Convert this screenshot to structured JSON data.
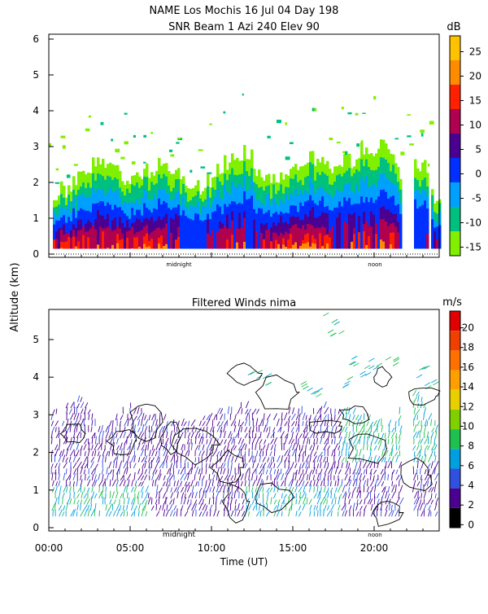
{
  "header": {
    "title": "NAME Los Mochis    16 Jul 04 Day 198",
    "subtitle": "SNR Beam 1 Azi 240 Elev 90"
  },
  "shared": {
    "ylabel": "Altitude (km)",
    "xlabel": "Time (UT)",
    "x_ticks": [
      "00:00",
      "05:00",
      "10:00",
      "15:00",
      "20:00"
    ],
    "marker_midnight": "midnight",
    "marker_noon": "noon"
  },
  "chart_data": [
    {
      "type": "heatmap",
      "title": "SNR Beam 1 Azi 240 Elev 90",
      "colorbar_unit": "dB",
      "colorbar_ticks": [
        "25",
        "20",
        "15",
        "10",
        "5",
        "0",
        "-5",
        "-10",
        "-15"
      ],
      "colorbar_colors": [
        "#ffc200",
        "#ff8c00",
        "#ff2000",
        "#b00050",
        "#4a0090",
        "#0030ff",
        "#00a0ff",
        "#00c080",
        "#80f000"
      ],
      "ylim": [
        0,
        6
      ],
      "y_ticks": [
        "0",
        "1",
        "2",
        "3",
        "4",
        "5",
        "6"
      ],
      "xlim": [
        0,
        24
      ],
      "echo_top_km": [
        [
          0.0,
          1.6
        ],
        [
          1.0,
          1.8
        ],
        [
          2.0,
          2.2
        ],
        [
          3.0,
          2.6
        ],
        [
          4.0,
          2.4
        ],
        [
          5.0,
          2.0
        ],
        [
          6.0,
          2.3
        ],
        [
          7.0,
          2.5
        ],
        [
          8.0,
          2.2
        ],
        [
          9.0,
          1.9
        ],
        [
          10.0,
          2.1
        ],
        [
          11.0,
          2.6
        ],
        [
          12.0,
          2.9
        ],
        [
          13.0,
          2.2
        ],
        [
          14.0,
          2.1
        ],
        [
          15.0,
          2.4
        ],
        [
          16.0,
          2.7
        ],
        [
          17.0,
          2.5
        ],
        [
          18.0,
          2.6
        ],
        [
          19.0,
          2.8
        ],
        [
          20.0,
          2.9
        ],
        [
          20.5,
          3.2
        ],
        [
          21.0,
          2.9
        ],
        [
          21.6,
          2.2
        ],
        [
          22.3,
          2.5
        ],
        [
          23.2,
          2.3
        ],
        [
          23.6,
          1.6
        ]
      ]
    },
    {
      "type": "heatmap",
      "title": "Filtered Winds nima",
      "colorbar_unit": "m/s",
      "colorbar_ticks": [
        "20",
        "18",
        "16",
        "14",
        "12",
        "10",
        "8",
        "6",
        "4",
        "2",
        "0"
      ],
      "colorbar_colors": [
        "#e00000",
        "#f04000",
        "#ff7000",
        "#ffa000",
        "#e8d000",
        "#80d000",
        "#20c050",
        "#00a0e0",
        "#3050e0",
        "#4a0090",
        "#000000"
      ],
      "ylim": [
        0,
        5.8
      ],
      "y_ticks": [
        "0",
        "1",
        "2",
        "3",
        "4",
        "5"
      ],
      "xlim": [
        0,
        24
      ],
      "wind_top_km": [
        [
          0.0,
          3.0
        ],
        [
          1.0,
          3.2
        ],
        [
          2.0,
          3.4
        ],
        [
          3.0,
          2.6
        ],
        [
          4.0,
          2.8
        ],
        [
          5.0,
          3.2
        ],
        [
          6.0,
          3.0
        ],
        [
          7.0,
          2.9
        ],
        [
          8.0,
          2.7
        ],
        [
          9.0,
          2.8
        ],
        [
          10.0,
          3.0
        ],
        [
          11.0,
          3.1
        ],
        [
          12.0,
          3.2
        ],
        [
          13.0,
          3.0
        ],
        [
          14.0,
          2.9
        ],
        [
          15.0,
          3.1
        ],
        [
          16.0,
          3.0
        ],
        [
          17.0,
          3.2
        ],
        [
          18.0,
          3.1
        ],
        [
          19.0,
          3.0
        ],
        [
          20.0,
          2.8
        ],
        [
          21.0,
          2.7
        ],
        [
          22.5,
          3.6
        ],
        [
          23.5,
          3.0
        ]
      ]
    }
  ]
}
